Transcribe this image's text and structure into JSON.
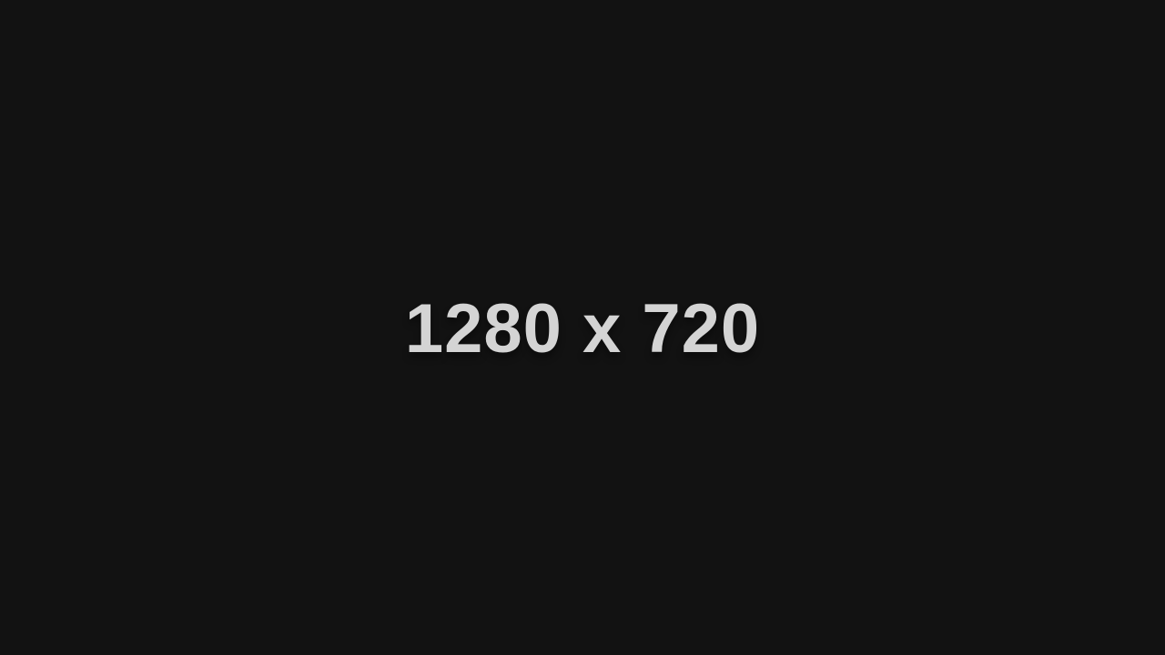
{
  "placeholder": {
    "label": "1280 x 720",
    "background_color": "#121212",
    "text_color": "#d4d4d4"
  }
}
